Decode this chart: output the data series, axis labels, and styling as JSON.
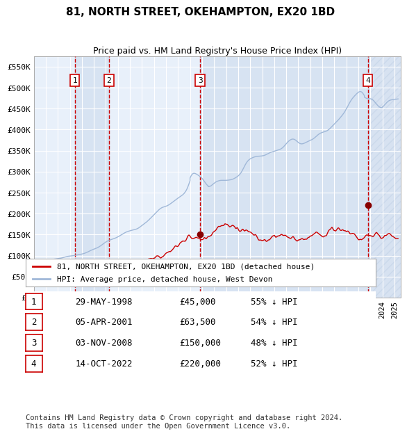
{
  "title": "81, NORTH STREET, OKEHAMPTON, EX20 1BD",
  "subtitle": "Price paid vs. HM Land Registry's House Price Index (HPI)",
  "xlabel": "",
  "ylabel": "",
  "ylim": [
    0,
    575000
  ],
  "yticks": [
    0,
    50000,
    100000,
    150000,
    200000,
    250000,
    300000,
    350000,
    400000,
    450000,
    500000,
    550000
  ],
  "ytick_labels": [
    "£0",
    "£50K",
    "£100K",
    "£150K",
    "£200K",
    "£250K",
    "£300K",
    "£350K",
    "£400K",
    "£450K",
    "£500K",
    "£550K"
  ],
  "xlim_start": 1995.0,
  "xlim_end": 2025.5,
  "bg_color": "#dce9f5",
  "plot_bg": "#e8f0fa",
  "hpi_line_color": "#a0b8d8",
  "price_line_color": "#cc0000",
  "sales": [
    {
      "label": "1",
      "date_year": 1998.41,
      "price": 45000
    },
    {
      "label": "2",
      "date_year": 2001.26,
      "price": 63500
    },
    {
      "label": "3",
      "date_year": 2008.84,
      "price": 150000
    },
    {
      "label": "4",
      "date_year": 2022.79,
      "price": 220000
    }
  ],
  "legend_line1": "81, NORTH STREET, OKEHAMPTON, EX20 1BD (detached house)",
  "legend_line2": "HPI: Average price, detached house, West Devon",
  "table_rows": [
    {
      "num": "1",
      "date": "29-MAY-1998",
      "price": "£45,000",
      "hpi": "55% ↓ HPI"
    },
    {
      "num": "2",
      "date": "05-APR-2001",
      "price": "£63,500",
      "hpi": "54% ↓ HPI"
    },
    {
      "num": "3",
      "date": "03-NOV-2008",
      "price": "£150,000",
      "hpi": "48% ↓ HPI"
    },
    {
      "num": "4",
      "date": "14-OCT-2022",
      "price": "£220,000",
      "hpi": "52% ↓ HPI"
    }
  ],
  "footnote": "Contains HM Land Registry data © Crown copyright and database right 2024.\nThis data is licensed under the Open Government Licence v3.0.",
  "vline_color": "#cc0000",
  "vline_style": "--",
  "shade_color": "#c8d8ec",
  "hatch_color": "#b0c4de"
}
